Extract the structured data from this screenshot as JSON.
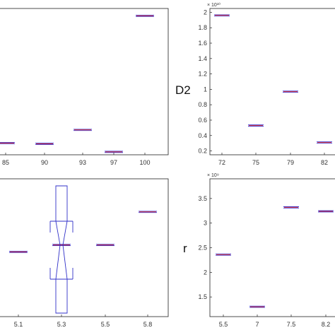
{
  "chart_data": [
    {
      "type": "boxplot",
      "categories": [
        "85",
        "90",
        "93",
        "97",
        "100"
      ],
      "values": [
        0.08,
        0.075,
        0.17,
        0.02,
        0.95
      ],
      "ylim": [
        0,
        1
      ],
      "ylabel": "",
      "yticks": [],
      "exponent": ""
    },
    {
      "type": "boxplot",
      "categories": [
        "72",
        "75",
        "79",
        "82"
      ],
      "values": [
        1.96,
        0.53,
        0.97,
        0.31
      ],
      "ylim": [
        0.15,
        2.05
      ],
      "ylabel": "D2",
      "yticks": [
        "0.2",
        "0.4",
        "0.6",
        "0.8",
        "1",
        "1.2",
        "1.4",
        "1.6",
        "1.8",
        "2"
      ],
      "exponent": "× 10¹⁰"
    },
    {
      "type": "boxplot",
      "categories": [
        "5.1",
        "5.3",
        "5.5",
        "5.8"
      ],
      "values": [
        0.47,
        0.52,
        0.52,
        0.76
      ],
      "ylim": [
        0,
        1
      ],
      "ylabel": "",
      "yticks": [],
      "exponent": ""
    },
    {
      "type": "boxplot",
      "categories": [
        "5.5",
        "7",
        "7.5",
        "8.2"
      ],
      "values": [
        2.36,
        1.3,
        3.32,
        3.24
      ],
      "ylim": [
        1.1,
        3.9
      ],
      "ylabel": "r",
      "yticks": [
        "1.5",
        "2",
        "2.5",
        "3",
        "3.5"
      ],
      "exponent": "× 10⁹"
    }
  ]
}
